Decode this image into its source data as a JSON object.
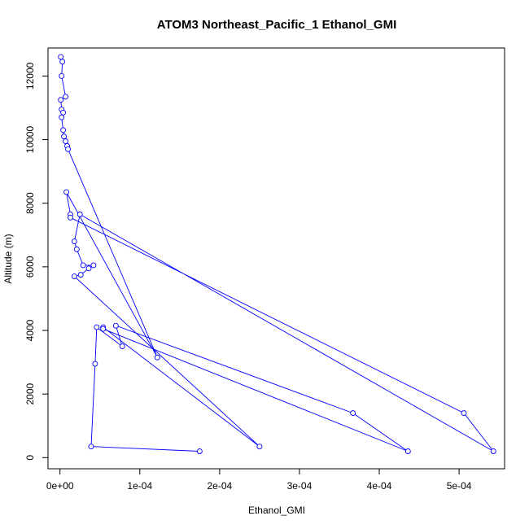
{
  "chart_data": {
    "type": "line",
    "title": "ATOM3 Northeast_Pacific_1 Ethanol_GMI",
    "xlabel": "Ethanol_GMI",
    "ylabel": "Altitude (m)",
    "xlim": [
      -1.5e-05,
      0.000557
    ],
    "ylim": [
      -350,
      12880
    ],
    "x_ticks": [
      0,
      0.0001,
      0.0002,
      0.0003,
      0.0004,
      0.0005
    ],
    "x_tick_labels": [
      "0e+00",
      "1e-04",
      "2e-04",
      "3e-04",
      "4e-04",
      "5e-04"
    ],
    "y_ticks": [
      0,
      2000,
      4000,
      6000,
      8000,
      10000,
      12000
    ],
    "y_tick_labels": [
      "0",
      "2000",
      "4000",
      "6000",
      "8000",
      "10000",
      "12000"
    ],
    "series": [
      {
        "color": "#0000ff",
        "marker": "open-circle",
        "points": [
          {
            "x": 1e-06,
            "y": 12600
          },
          {
            "x": 3e-06,
            "y": 12450
          },
          {
            "x": 2e-06,
            "y": 12000
          },
          {
            "x": 7e-06,
            "y": 11350
          },
          {
            "x": 1e-06,
            "y": 11250
          },
          {
            "x": 2e-06,
            "y": 10950
          },
          {
            "x": 4e-06,
            "y": 10850
          },
          {
            "x": 2e-06,
            "y": 10700
          },
          {
            "x": 4e-06,
            "y": 10300
          },
          {
            "x": 5e-06,
            "y": 10100
          },
          {
            "x": 7e-06,
            "y": 9950
          },
          {
            "x": 9e-06,
            "y": 9800
          },
          {
            "x": 1e-05,
            "y": 9700
          },
          {
            "x": 0.000122,
            "y": 3150
          },
          {
            "x": 8e-06,
            "y": 8350
          },
          {
            "x": 1.3e-05,
            "y": 7650
          },
          {
            "x": 1.3e-05,
            "y": 7550
          },
          {
            "x": 0.000506,
            "y": 1400
          },
          {
            "x": 0.000543,
            "y": 200
          },
          {
            "x": 2.5e-05,
            "y": 7650
          },
          {
            "x": 1.8e-05,
            "y": 6800
          },
          {
            "x": 2.1e-05,
            "y": 6550
          },
          {
            "x": 2.9e-05,
            "y": 6050
          },
          {
            "x": 4.2e-05,
            "y": 6050
          },
          {
            "x": 3.6e-05,
            "y": 5950
          },
          {
            "x": 2.6e-05,
            "y": 5750
          },
          {
            "x": 1.8e-05,
            "y": 5700
          },
          {
            "x": 0.00025,
            "y": 350
          },
          {
            "x": 5.4e-05,
            "y": 4100
          },
          {
            "x": 5.4e-05,
            "y": 4050
          },
          {
            "x": 0.000436,
            "y": 200
          },
          {
            "x": 0.000367,
            "y": 1400
          },
          {
            "x": 7e-05,
            "y": 4150
          },
          {
            "x": 7.8e-05,
            "y": 3500
          },
          {
            "x": 4.6e-05,
            "y": 4100
          },
          {
            "x": 4.4e-05,
            "y": 2950
          },
          {
            "x": 3.9e-05,
            "y": 350
          },
          {
            "x": 0.000175,
            "y": 200
          }
        ]
      }
    ]
  }
}
